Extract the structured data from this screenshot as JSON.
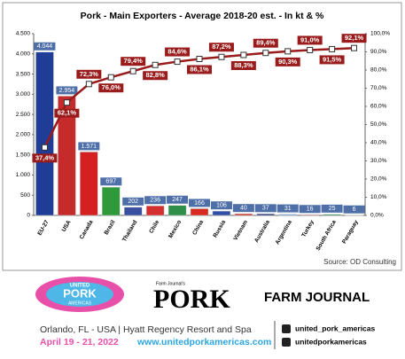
{
  "chart_data": {
    "type": "bar",
    "title": "Pork - Main Exporters - Average 2018-20 est. - In kt & %",
    "categories": [
      "EU-27",
      "USA",
      "Canada",
      "Brazil",
      "Thailand",
      "Chile",
      "Mexico",
      "China",
      "Russia",
      "Vietnam",
      "Australia",
      "Argentina",
      "Turkey",
      "South Africa",
      "Paraguay"
    ],
    "series": [
      {
        "name": "Exports",
        "colors": [
          "#1f3c96",
          "#c62b2b",
          "#d42020",
          "#2f9a3a",
          "#3a4fa0",
          "#d53030",
          "#2f8f4a",
          "#d82a20",
          "#3050a8",
          "#d62828",
          "#23307a",
          "#7fb2e0",
          "#d42a2a",
          "#2a8a50",
          "#c03030"
        ],
        "values": [
          4044,
          2954,
          1571,
          697,
          202,
          236,
          247,
          166,
          106,
          40,
          37,
          31,
          16,
          25,
          6
        ],
        "value_labels": [
          "4.044",
          "2.954",
          "1.571",
          "697",
          "202",
          "236",
          "247",
          "166",
          "106",
          "40",
          "37",
          "31",
          "16",
          "25",
          "6"
        ]
      },
      {
        "name": "Cumulative share",
        "axis": "y2",
        "color": "#9a1b1b",
        "values": [
          37.4,
          62.1,
          72.3,
          76.0,
          79.4,
          82.8,
          84.6,
          86.1,
          87.2,
          88.3,
          89.4,
          90.3,
          91.0,
          91.5,
          92.1
        ],
        "value_labels": [
          "37,4%",
          "62,1%",
          "72,3%",
          "76,0%",
          "79,4%",
          "82,8%",
          "84,6%",
          "86,1%",
          "87,2%",
          "88,3%",
          "89,4%",
          "90,3%",
          "91,0%",
          "91,5%",
          "92,1%"
        ]
      }
    ],
    "ylim": [
      0,
      4500
    ],
    "yticks": [
      0,
      {
        "value": 500,
        "label": "500"
      },
      {
        "value": 1000,
        "label": "1.000"
      },
      {
        "value": 1500,
        "label": "1.500"
      },
      {
        "value": 2000,
        "label": "2.000"
      },
      {
        "value": 2500,
        "label": "2.500"
      },
      {
        "value": 3000,
        "label": "3.000"
      },
      {
        "value": 3500,
        "label": "3.500"
      },
      {
        "value": 4000,
        "label": "4.000"
      },
      {
        "value": 4500,
        "label": "4.500"
      }
    ],
    "y2lim": [
      0,
      100
    ],
    "y2ticks": [
      {
        "value": 0,
        "label": "0,0%"
      },
      {
        "value": 10,
        "label": "10,0%"
      },
      {
        "value": 20,
        "label": "20,0%"
      },
      {
        "value": 30,
        "label": "30,0%"
      },
      {
        "value": 40,
        "label": "40,0%"
      },
      {
        "value": 50,
        "label": "50,0%"
      },
      {
        "value": 60,
        "label": "60,0%"
      },
      {
        "value": 70,
        "label": "70,0%"
      },
      {
        "value": 80,
        "label": "80,0%"
      },
      {
        "value": 90,
        "label": "90,0%"
      },
      {
        "value": 100,
        "label": "100,0%"
      }
    ],
    "source": "Source: OD Consulting"
  },
  "footer": {
    "event_logo": [
      "UNITED",
      "PORK",
      "AMERICAS"
    ],
    "magazine_small": "Farm Journal's",
    "magazine": "PORK",
    "publisher": "FARM JOURNAL",
    "location": "Orlando, FL - USA | Hyatt Regency Resort and Spa",
    "dates": "April 19 - 21, 2022",
    "url": "www.unitedporkamericas.com",
    "instagram": "united_pork_americas",
    "facebook": "unitedporkamericas"
  }
}
